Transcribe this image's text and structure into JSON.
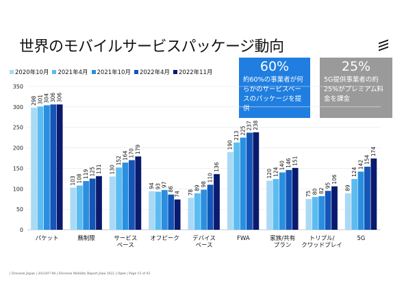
{
  "title": "世界のモバイルサービスパッケージ動向",
  "callouts": [
    {
      "big": "60%",
      "text": "約60%の事業者が何らかのサービスベースのパッケージを提供",
      "color": "#1f7ee0"
    },
    {
      "big": "25%",
      "text": "5G提供事業者の約25%がプレミアム料金を課金",
      "color": "#9a9a9a"
    }
  ],
  "footer": "| Ericsson Japan | 2022/07-08 | Ericsson Mobility Report June 2022 | Open | Page 15 of 43",
  "chart_data": {
    "type": "bar",
    "categories": [
      [
        "パケット"
      ],
      [
        "無制限"
      ],
      [
        "サービス",
        "ベース"
      ],
      [
        "オフピーク"
      ],
      [
        "デバイス",
        "ベース"
      ],
      [
        "FWA"
      ],
      [
        "家族/共有",
        "プラン"
      ],
      [
        "トリプル/",
        "クワッドプレイ"
      ],
      [
        "5G"
      ]
    ],
    "series": [
      {
        "name": "2020年10月",
        "color": "#a9d9f5",
        "values": [
          298,
          103,
          130,
          94,
          78,
          190,
          120,
          75,
          89
        ]
      },
      {
        "name": "2021年4月",
        "color": "#5cbcf0",
        "values": [
          301,
          108,
          152,
          93,
          89,
          213,
          124,
          80,
          124
        ]
      },
      {
        "name": "2021年10月",
        "color": "#2a8fe0",
        "values": [
          304,
          119,
          164,
          97,
          98,
          225,
          140,
          82,
          142
        ]
      },
      {
        "name": "2022年4月",
        "color": "#1456b8",
        "values": [
          306,
          125,
          170,
          86,
          110,
          237,
          146,
          95,
          154
        ]
      },
      {
        "name": "2022年11月",
        "color": "#0a1a6e",
        "values": [
          306,
          131,
          179,
          74,
          136,
          238,
          151,
          106,
          174
        ]
      }
    ],
    "ylim": [
      0,
      350
    ],
    "yticks": [
      0,
      50,
      100,
      150,
      200,
      250,
      300,
      350
    ],
    "grid": true,
    "legend_position": "top-left"
  }
}
